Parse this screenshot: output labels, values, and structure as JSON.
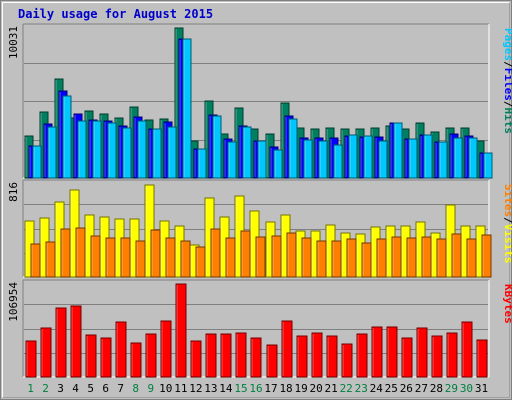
{
  "chart_data": {
    "type": "bar",
    "title": "Daily usage for August 2015",
    "x": [
      "1",
      "2",
      "3",
      "4",
      "5",
      "6",
      "7",
      "8",
      "9",
      "10",
      "11",
      "12",
      "13",
      "14",
      "15",
      "16",
      "17",
      "18",
      "19",
      "20",
      "21",
      "22",
      "23",
      "24",
      "25",
      "26",
      "27",
      "28",
      "29",
      "30",
      "31"
    ],
    "weekend_days": [
      "1",
      "2",
      "8",
      "9",
      "15",
      "16",
      "22",
      "23",
      "29",
      "30"
    ],
    "weekday_label_color": "#000000",
    "weekend_label_color": "#008040",
    "panels": [
      {
        "id": "hits_files_pages",
        "max_label": "10031",
        "ymax": 10031,
        "legend": [
          {
            "text": "Pages",
            "color": "#00c8ff"
          },
          {
            "text": "/",
            "color": "#000000"
          },
          {
            "text": "Files",
            "color": "#0000ff"
          },
          {
            "text": "/",
            "color": "#000000"
          },
          {
            "text": "Hits",
            "color": "#00805c"
          }
        ],
        "series": [
          {
            "color": "#008060",
            "values": [
              2780,
              4400,
              6650,
              4000,
              4500,
              4300,
              4000,
              4750,
              3850,
              3950,
              10031,
              2500,
              5150,
              2950,
              4650,
              3250,
              2950,
              5000,
              3350,
              3300,
              3350,
              3300,
              3300,
              3350,
              3450,
              3250,
              3700,
              3050,
              3350,
              3350,
              2450
            ]
          },
          {
            "color": "#0000ff",
            "values": [
              2150,
              3600,
              5800,
              4300,
              3850,
              3800,
              3450,
              4100,
              3250,
              3750,
              9300,
              1950,
              4200,
              2600,
              3450,
              2500,
              2100,
              4150,
              2700,
              2700,
              2700,
              2800,
              2750,
              2750,
              3650,
              2600,
              2900,
              2400,
              2950,
              2800,
              1700
            ]
          },
          {
            "color": "#00c8ff",
            "values": [
              2150,
              3400,
              5500,
              3800,
              3800,
              3700,
              3350,
              3800,
              3250,
              3400,
              9300,
              1950,
              4150,
              2400,
              3400,
              2500,
              1900,
              3950,
              2550,
              2450,
              2200,
              2900,
              2800,
              2500,
              3650,
              2600,
              2900,
              2400,
              2650,
              2650,
              1700
            ]
          }
        ]
      },
      {
        "id": "visits_sites",
        "max_label": "816",
        "ymax": 816,
        "legend": [
          {
            "text": "Sites",
            "color": "#ff8000"
          },
          {
            "text": "/",
            "color": "#000000"
          },
          {
            "text": "Visits",
            "color": "#ffff00"
          }
        ],
        "series": [
          {
            "color": "#ffff00",
            "values": [
              490,
              520,
              660,
              760,
              540,
              530,
              510,
              510,
              810,
              490,
              450,
              280,
              690,
              530,
              710,
              580,
              480,
              540,
              400,
              400,
              460,
              390,
              380,
              440,
              450,
              450,
              480,
              390,
              630,
              450,
              450
            ]
          },
          {
            "color": "#ff8000",
            "values": [
              290,
              310,
              420,
              430,
              360,
              340,
              340,
              320,
              410,
              340,
              320,
              260,
              420,
              340,
              400,
              350,
              360,
              390,
              340,
              320,
              320,
              330,
              300,
              330,
              350,
              340,
              350,
              330,
              380,
              330,
              370
            ]
          }
        ]
      },
      {
        "id": "kbytes",
        "max_label": "106954",
        "ymax": 106954,
        "legend": [
          {
            "text": "KBytes",
            "color": "#ff0000"
          }
        ],
        "series": [
          {
            "color": "#ff0000",
            "values": [
              41200,
              56000,
              79000,
              82000,
              48000,
              45000,
              63000,
              39000,
              50000,
              64000,
              106954,
              41000,
              50000,
              49000,
              51000,
              45000,
              37000,
              64000,
              47000,
              51000,
              47000,
              38000,
              50000,
              57000,
              57000,
              45000,
              56000,
              47000,
              51000,
              63000,
              43000
            ]
          }
        ]
      }
    ]
  }
}
